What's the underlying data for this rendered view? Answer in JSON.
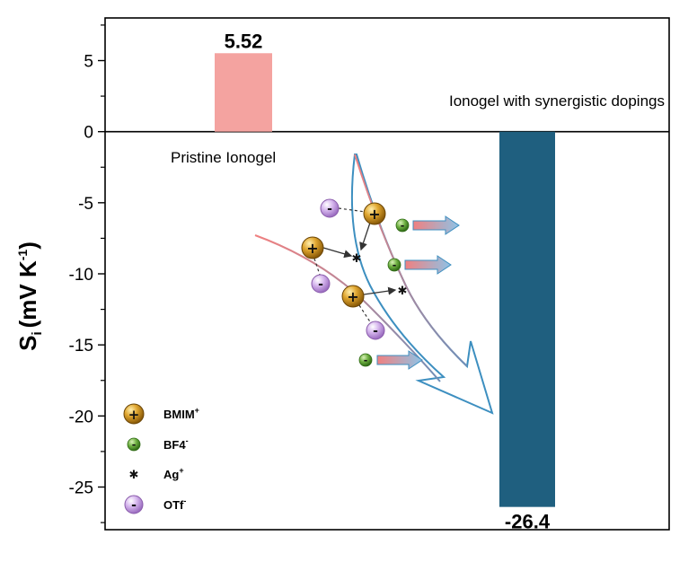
{
  "chart_data": {
    "type": "bar",
    "categories": [
      "Pristine Ionogel",
      "Ionogel with synergistic dopings"
    ],
    "values": [
      5.52,
      -26.4
    ],
    "value_labels": [
      "5.52",
      "-26.4"
    ],
    "colors": [
      "#f4a3a0",
      "#1f5f7f"
    ],
    "ylim": [
      -28,
      8
    ],
    "yticks": [
      5,
      0,
      -5,
      -10,
      -15,
      -20,
      -25
    ],
    "ylabel": {
      "main": "S",
      "sub": "i",
      "unit": "(mV K",
      "unit_sup": "-1",
      "unit_close": ")"
    },
    "xlabel": "",
    "title": "",
    "grid": false
  },
  "legend": {
    "items": [
      {
        "label": "BMIM",
        "sup": "+",
        "icon": "bmim-cation-icon",
        "color": "#c48a1c"
      },
      {
        "label": "BF4",
        "sup": "-",
        "icon": "bf4-anion-icon",
        "color": "#5e9e3a"
      },
      {
        "label": "Ag",
        "sup": "+",
        "icon": "ag-ion-icon",
        "color": "#555555"
      },
      {
        "label": "OTf",
        "sup": "-",
        "icon": "otf-anion-icon",
        "color": "#b98ed6"
      }
    ]
  },
  "ion_signs": {
    "plus": "+",
    "minus": "-",
    "star": "✱"
  }
}
